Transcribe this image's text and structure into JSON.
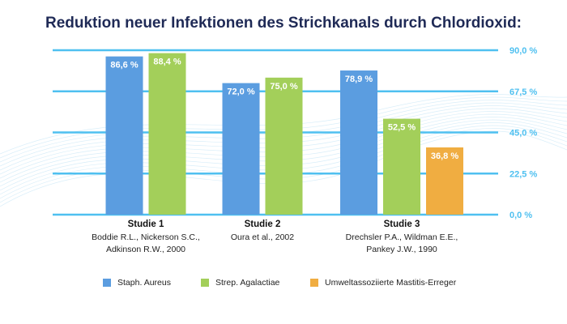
{
  "chart_data": {
    "type": "bar",
    "title": "Reduktion neuer Infektionen des Strichkanals durch Chlordioxid:",
    "categories": [
      {
        "label": "Studie 1",
        "sub": [
          "Boddie R.L., Nickerson S.C.,",
          "Adkinson R.W., 2000"
        ]
      },
      {
        "label": "Studie 2",
        "sub": [
          "Oura et al., 2002"
        ]
      },
      {
        "label": "Studie 3",
        "sub": [
          "Drechsler P.A., Wildman E.E.,",
          "Pankey J.W., 1990"
        ]
      }
    ],
    "series": [
      {
        "name": "Staph. Aureus",
        "color": "#5b9de0",
        "values": [
          86.6,
          72.0,
          78.9
        ],
        "labels": [
          "86,6 %",
          "72,0 %",
          "78,9 %"
        ]
      },
      {
        "name": "Strep. Agalactiae",
        "color": "#a3cf5a",
        "values": [
          88.4,
          75.0,
          52.5
        ],
        "labels": [
          "88,4 %",
          "75,0 %",
          "52,5 %"
        ]
      },
      {
        "name": "Umweltassoziierte Mastitis-Erreger",
        "color": "#f0ad41",
        "values": [
          null,
          null,
          36.8
        ],
        "labels": [
          null,
          null,
          "36,8 %"
        ]
      }
    ],
    "ylim": [
      0,
      90
    ],
    "yticks": [
      0,
      22.5,
      45,
      67.5,
      90
    ],
    "ytick_labels": [
      "0,0 %",
      "22,5 %",
      "45,0 %",
      "67,5 %",
      "90,0 %"
    ],
    "axis_position": "right",
    "grid": true,
    "grid_color": "#4fc0f0",
    "legend_position": "bottom"
  }
}
